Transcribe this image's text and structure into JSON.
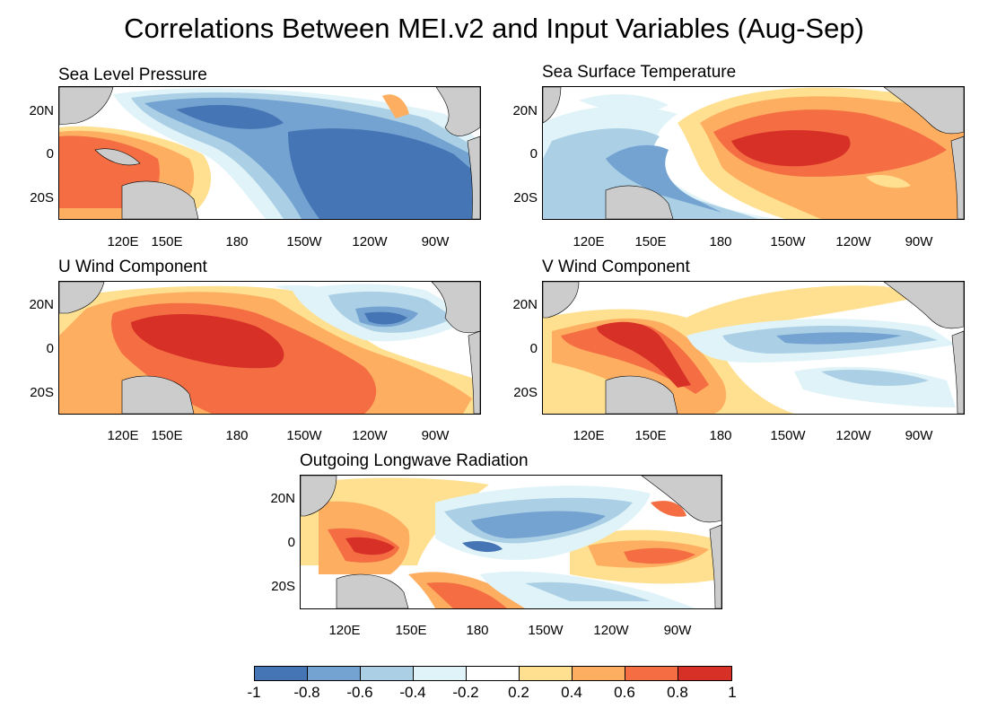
{
  "title": "Correlations Between MEI.v2 and Input Variables (Aug-Sep)",
  "colors": {
    "neg_10_08": "#4575b4",
    "neg_08_06": "#74a3d1",
    "neg_06_04": "#abd0e6",
    "neg_04_02": "#e0f3f8",
    "neutral": "#ffffff",
    "pos_02_04": "#fee090",
    "pos_04_06": "#fdae61",
    "pos_06_08": "#f46d43",
    "pos_08_10": "#d73027",
    "land": "#cccccc"
  },
  "panels": [
    {
      "id": "slp",
      "title": "Sea Level Pressure"
    },
    {
      "id": "sst",
      "title": "Sea Surface Temperature"
    },
    {
      "id": "uwnd",
      "title": "U Wind Component"
    },
    {
      "id": "vwnd",
      "title": "V Wind Component"
    },
    {
      "id": "olr",
      "title": "Outgoing Longwave Radiation"
    }
  ],
  "lat_labels": [
    "20N",
    "0",
    "20S"
  ],
  "lon_labels": [
    "120E",
    "150E",
    "180",
    "150W",
    "120W",
    "90W"
  ],
  "colorbar": {
    "labels": [
      "-1",
      "-0.8",
      "-0.6",
      "-0.4",
      "-0.2",
      "0.2",
      "0.4",
      "0.6",
      "0.8",
      "1"
    ],
    "colors": [
      "#4575b4",
      "#74a3d1",
      "#abd0e6",
      "#e0f3f8",
      "#ffffff",
      "#fee090",
      "#fdae61",
      "#f46d43",
      "#d73027"
    ]
  }
}
